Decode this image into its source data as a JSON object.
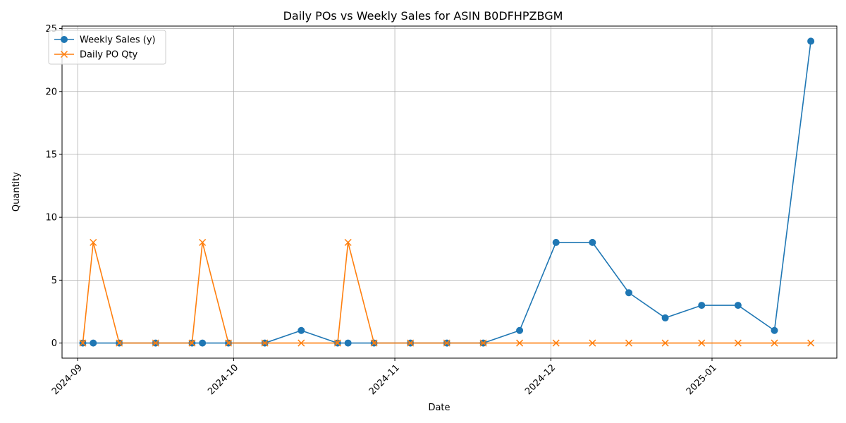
{
  "chart_data": {
    "type": "line",
    "title": "Daily POs vs Weekly Sales for ASIN B0DFHPZBGM",
    "xlabel": "Date",
    "ylabel": "Quantity",
    "x_type": "date",
    "xlim": [
      "2024-08-29",
      "2025-01-25"
    ],
    "ylim": [
      -1.2,
      25.2
    ],
    "y_ticks": [
      0,
      5,
      10,
      15,
      20,
      25
    ],
    "x_ticks": [
      {
        "date": "2024-09-01",
        "label": "2024-09"
      },
      {
        "date": "2024-10-01",
        "label": "2024-10"
      },
      {
        "date": "2024-11-01",
        "label": "2024-11"
      },
      {
        "date": "2024-12-01",
        "label": "2024-12"
      },
      {
        "date": "2025-01-01",
        "label": "2025-01"
      }
    ],
    "grid": true,
    "legend_position": "upper left",
    "series": [
      {
        "name": "Weekly Sales (y)",
        "color": "#1f77b4",
        "marker": "circle",
        "points": [
          {
            "x": "2024-09-02",
            "y": 0
          },
          {
            "x": "2024-09-04",
            "y": 0
          },
          {
            "x": "2024-09-09",
            "y": 0
          },
          {
            "x": "2024-09-16",
            "y": 0
          },
          {
            "x": "2024-09-23",
            "y": 0
          },
          {
            "x": "2024-09-25",
            "y": 0
          },
          {
            "x": "2024-09-30",
            "y": 0
          },
          {
            "x": "2024-10-07",
            "y": 0
          },
          {
            "x": "2024-10-14",
            "y": 1
          },
          {
            "x": "2024-10-21",
            "y": 0
          },
          {
            "x": "2024-10-23",
            "y": 0
          },
          {
            "x": "2024-10-28",
            "y": 0
          },
          {
            "x": "2024-11-04",
            "y": 0
          },
          {
            "x": "2024-11-11",
            "y": 0
          },
          {
            "x": "2024-11-18",
            "y": 0
          },
          {
            "x": "2024-11-25",
            "y": 1
          },
          {
            "x": "2024-12-02",
            "y": 8
          },
          {
            "x": "2024-12-09",
            "y": 8
          },
          {
            "x": "2024-12-16",
            "y": 4
          },
          {
            "x": "2024-12-23",
            "y": 2
          },
          {
            "x": "2024-12-30",
            "y": 3
          },
          {
            "x": "2025-01-06",
            "y": 3
          },
          {
            "x": "2025-01-13",
            "y": 1
          },
          {
            "x": "2025-01-20",
            "y": 24
          }
        ]
      },
      {
        "name": "Daily PO Qty",
        "color": "#ff7f0e",
        "marker": "x",
        "points": [
          {
            "x": "2024-09-02",
            "y": 0
          },
          {
            "x": "2024-09-04",
            "y": 8
          },
          {
            "x": "2024-09-09",
            "y": 0
          },
          {
            "x": "2024-09-16",
            "y": 0
          },
          {
            "x": "2024-09-23",
            "y": 0
          },
          {
            "x": "2024-09-25",
            "y": 8
          },
          {
            "x": "2024-09-30",
            "y": 0
          },
          {
            "x": "2024-10-07",
            "y": 0
          },
          {
            "x": "2024-10-14",
            "y": 0
          },
          {
            "x": "2024-10-21",
            "y": 0
          },
          {
            "x": "2024-10-23",
            "y": 8
          },
          {
            "x": "2024-10-28",
            "y": 0
          },
          {
            "x": "2024-11-04",
            "y": 0
          },
          {
            "x": "2024-11-11",
            "y": 0
          },
          {
            "x": "2024-11-18",
            "y": 0
          },
          {
            "x": "2024-11-25",
            "y": 0
          },
          {
            "x": "2024-12-02",
            "y": 0
          },
          {
            "x": "2024-12-09",
            "y": 0
          },
          {
            "x": "2024-12-16",
            "y": 0
          },
          {
            "x": "2024-12-23",
            "y": 0
          },
          {
            "x": "2024-12-30",
            "y": 0
          },
          {
            "x": "2025-01-06",
            "y": 0
          },
          {
            "x": "2025-01-13",
            "y": 0
          },
          {
            "x": "2025-01-20",
            "y": 0
          }
        ]
      }
    ]
  }
}
